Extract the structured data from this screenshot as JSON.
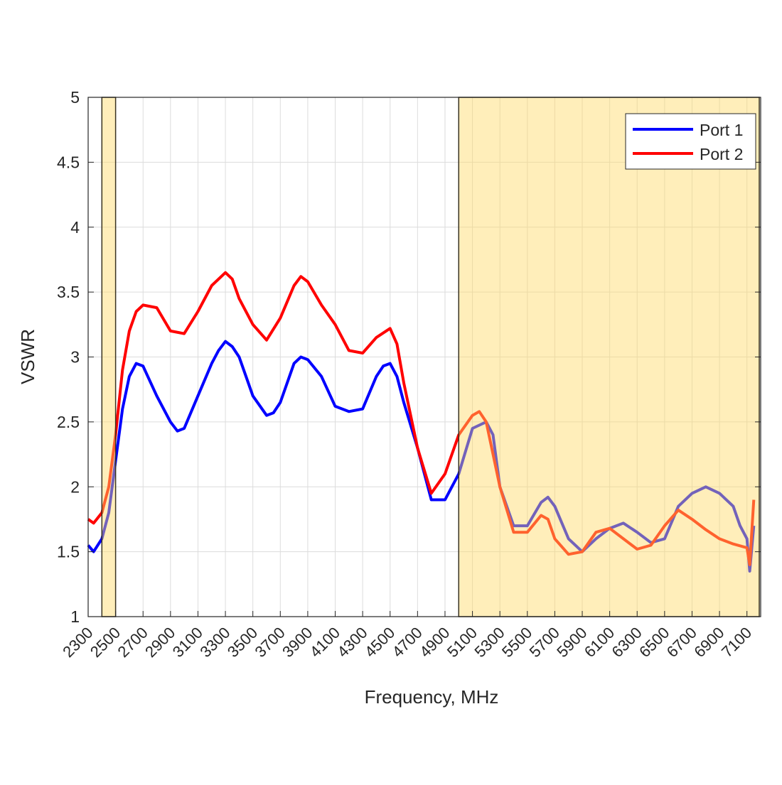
{
  "chart_data": {
    "type": "line",
    "title": "",
    "xlabel": "Frequency, MHz",
    "ylabel": "VSWR",
    "xlim": [
      2300,
      7200
    ],
    "ylim": [
      1,
      5
    ],
    "xticks": [
      2300,
      2500,
      2700,
      2900,
      3100,
      3300,
      3500,
      3700,
      3900,
      4100,
      4300,
      4500,
      4700,
      4900,
      5100,
      5300,
      5500,
      5700,
      5900,
      6100,
      6300,
      6500,
      6700,
      6900,
      7100
    ],
    "yticks": [
      1,
      1.5,
      2,
      2.5,
      3,
      3.5,
      4,
      4.5,
      5
    ],
    "grid": true,
    "legend_position": "top-right",
    "shaded_bands": [
      {
        "from": 2400,
        "to": 2500,
        "color": "#FFD966"
      },
      {
        "from": 5000,
        "to": 7200,
        "color": "#FFD966"
      }
    ],
    "series": [
      {
        "name": "Port 1",
        "color": "#0000FF",
        "x": [
          2300,
          2340,
          2400,
          2450,
          2500,
          2550,
          2600,
          2650,
          2700,
          2800,
          2900,
          2950,
          3000,
          3100,
          3200,
          3250,
          3300,
          3350,
          3400,
          3500,
          3600,
          3650,
          3700,
          3800,
          3850,
          3900,
          4000,
          4100,
          4200,
          4300,
          4400,
          4450,
          4500,
          4550,
          4600,
          4700,
          4800,
          4900,
          5000,
          5100,
          5200,
          5250,
          5300,
          5400,
          5500,
          5600,
          5650,
          5700,
          5800,
          5900,
          6000,
          6100,
          6200,
          6300,
          6400,
          6500,
          6600,
          6700,
          6800,
          6900,
          7000,
          7050,
          7100,
          7120,
          7150
        ],
        "y": [
          1.55,
          1.5,
          1.6,
          1.8,
          2.2,
          2.6,
          2.85,
          2.95,
          2.93,
          2.7,
          2.5,
          2.43,
          2.45,
          2.7,
          2.95,
          3.05,
          3.12,
          3.08,
          3.0,
          2.7,
          2.55,
          2.57,
          2.65,
          2.95,
          3.0,
          2.98,
          2.85,
          2.62,
          2.58,
          2.6,
          2.85,
          2.93,
          2.95,
          2.85,
          2.65,
          2.3,
          1.9,
          1.9,
          2.1,
          2.45,
          2.5,
          2.4,
          2.0,
          1.7,
          1.7,
          1.88,
          1.92,
          1.85,
          1.6,
          1.5,
          1.6,
          1.68,
          1.72,
          1.65,
          1.57,
          1.6,
          1.85,
          1.95,
          2.0,
          1.95,
          1.85,
          1.7,
          1.6,
          1.35,
          1.7
        ]
      },
      {
        "name": "Port 2",
        "color": "#FF0000",
        "x": [
          2300,
          2340,
          2400,
          2450,
          2500,
          2550,
          2600,
          2650,
          2700,
          2800,
          2900,
          3000,
          3100,
          3200,
          3300,
          3350,
          3400,
          3500,
          3600,
          3700,
          3800,
          3850,
          3900,
          4000,
          4100,
          4200,
          4300,
          4400,
          4500,
          4550,
          4600,
          4700,
          4800,
          4900,
          5000,
          5100,
          5150,
          5200,
          5300,
          5400,
          5500,
          5600,
          5650,
          5700,
          5800,
          5900,
          6000,
          6100,
          6200,
          6300,
          6400,
          6500,
          6600,
          6700,
          6800,
          6900,
          7000,
          7100,
          7120,
          7150
        ],
        "y": [
          1.75,
          1.72,
          1.8,
          2.0,
          2.4,
          2.9,
          3.2,
          3.35,
          3.4,
          3.38,
          3.2,
          3.18,
          3.35,
          3.55,
          3.65,
          3.6,
          3.45,
          3.25,
          3.13,
          3.3,
          3.55,
          3.62,
          3.58,
          3.4,
          3.25,
          3.05,
          3.03,
          3.15,
          3.22,
          3.1,
          2.8,
          2.3,
          1.95,
          2.1,
          2.4,
          2.55,
          2.58,
          2.5,
          2.0,
          1.65,
          1.65,
          1.78,
          1.75,
          1.6,
          1.48,
          1.5,
          1.65,
          1.68,
          1.6,
          1.52,
          1.55,
          1.7,
          1.82,
          1.75,
          1.67,
          1.6,
          1.56,
          1.53,
          1.4,
          1.9
        ]
      }
    ]
  }
}
